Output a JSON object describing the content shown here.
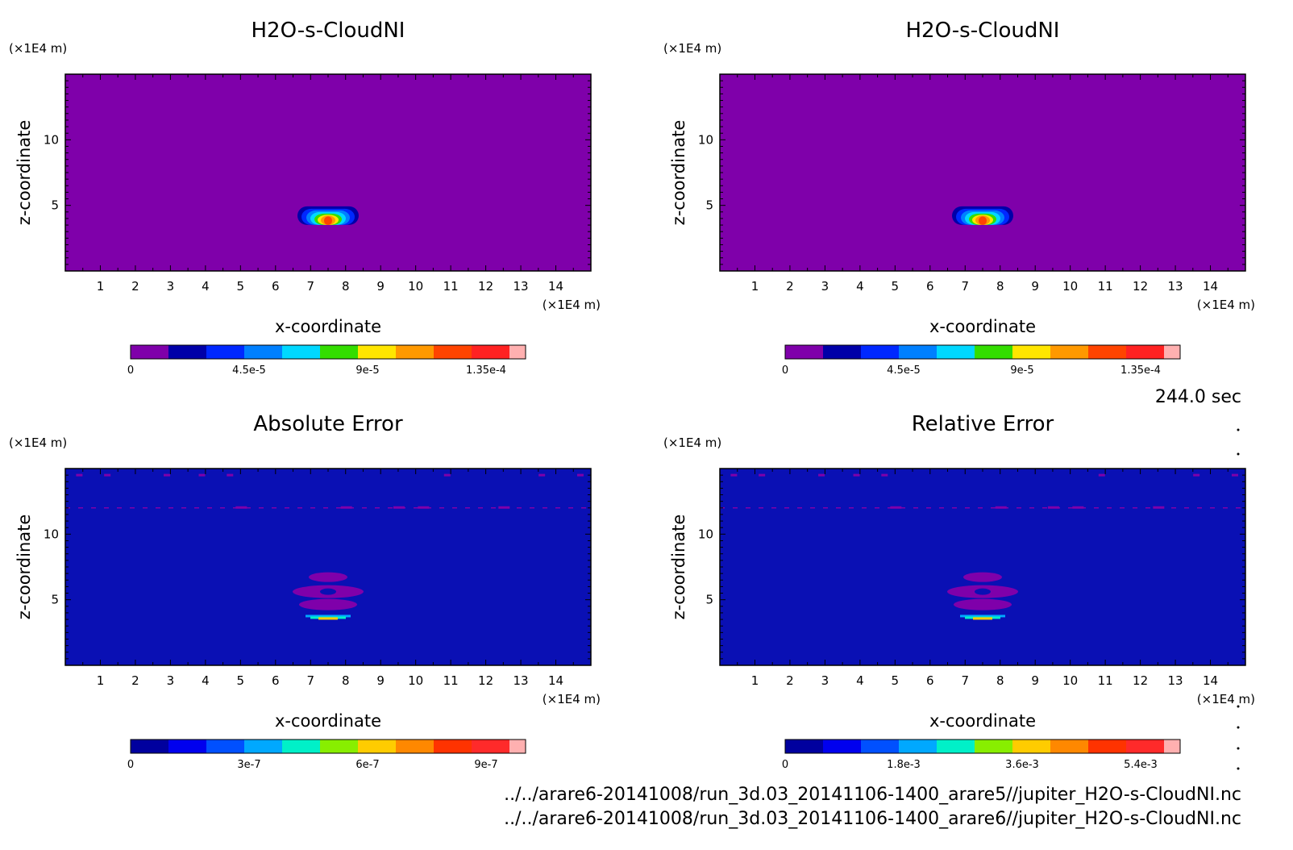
{
  "chart_data": [
    {
      "type": "heatmap",
      "title": "H2O-s-CloudNI",
      "xlabel": "x-coordinate",
      "ylabel": "z-coordinate",
      "x_unit": "(×1E4 m)",
      "y_unit": "(×1E4 m)",
      "xlim": [
        0,
        15
      ],
      "ylim": [
        0,
        15
      ],
      "xticks": [
        "1",
        "2",
        "3",
        "4",
        "5",
        "6",
        "7",
        "8",
        "9",
        "10",
        "11",
        "12",
        "13",
        "14"
      ],
      "yticks": [
        "5",
        "10"
      ],
      "colorbar": {
        "colors": [
          "#7f00aa",
          "#0000a8",
          "#0028ff",
          "#0080ff",
          "#00d8ff",
          "#33dd00",
          "#ffe600",
          "#ff9900",
          "#ff4400",
          "#ff2222",
          "#ffb0b0"
        ],
        "tick_labels": [
          "0",
          "4.5e-5",
          "9e-5",
          "1.35e-4"
        ],
        "tick_values": [
          0,
          4.5e-05,
          9e-05,
          0.000135
        ],
        "vmax": 0.00015
      },
      "background": "#7f00aa",
      "feature": {
        "kind": "cloud",
        "x_center": 7.5,
        "z_center": 4.0
      }
    },
    {
      "type": "heatmap",
      "title": "H2O-s-CloudNI",
      "xlabel": "x-coordinate",
      "ylabel": "z-coordinate",
      "x_unit": "(×1E4 m)",
      "y_unit": "(×1E4 m)",
      "xlim": [
        0,
        15
      ],
      "ylim": [
        0,
        15
      ],
      "xticks": [
        "1",
        "2",
        "3",
        "4",
        "5",
        "6",
        "7",
        "8",
        "9",
        "10",
        "11",
        "12",
        "13",
        "14"
      ],
      "yticks": [
        "5",
        "10"
      ],
      "colorbar": {
        "colors": [
          "#7f00aa",
          "#0000a8",
          "#0028ff",
          "#0080ff",
          "#00d8ff",
          "#33dd00",
          "#ffe600",
          "#ff9900",
          "#ff4400",
          "#ff2222",
          "#ffb0b0"
        ],
        "tick_labels": [
          "0",
          "4.5e-5",
          "9e-5",
          "1.35e-4"
        ],
        "tick_values": [
          0,
          4.5e-05,
          9e-05,
          0.000135
        ],
        "vmax": 0.00015
      },
      "background": "#7f00aa",
      "feature": {
        "kind": "cloud",
        "x_center": 7.5,
        "z_center": 4.0
      }
    },
    {
      "type": "heatmap",
      "title": "Absolute Error",
      "xlabel": "x-coordinate",
      "ylabel": "z-coordinate",
      "x_unit": "(×1E4 m)",
      "y_unit": "(×1E4 m)",
      "xlim": [
        0,
        15
      ],
      "ylim": [
        0,
        15
      ],
      "xticks": [
        "1",
        "2",
        "3",
        "4",
        "5",
        "6",
        "7",
        "8",
        "9",
        "10",
        "11",
        "12",
        "13",
        "14"
      ],
      "yticks": [
        "5",
        "10"
      ],
      "colorbar": {
        "colors": [
          "#00009e",
          "#0000ee",
          "#0050ff",
          "#00a8ff",
          "#00f0c8",
          "#88ee00",
          "#ffcc00",
          "#ff8800",
          "#ff3300",
          "#ff2a2a",
          "#ffb0b0"
        ],
        "tick_labels": [
          "0",
          "3e-7",
          "6e-7",
          "9e-7"
        ],
        "tick_values": [
          0,
          3e-07,
          6e-07,
          9e-07
        ],
        "vmax": 1e-06
      },
      "background": "#0a10b4",
      "feature": {
        "kind": "error",
        "x_center": 7.5,
        "z_center": 5.0
      }
    },
    {
      "type": "heatmap",
      "title": "Relative Error",
      "xlabel": "x-coordinate",
      "ylabel": "z-coordinate",
      "x_unit": "(×1E4 m)",
      "y_unit": "(×1E4 m)",
      "xlim": [
        0,
        15
      ],
      "ylim": [
        0,
        15
      ],
      "xticks": [
        "1",
        "2",
        "3",
        "4",
        "5",
        "6",
        "7",
        "8",
        "9",
        "10",
        "11",
        "12",
        "13",
        "14"
      ],
      "yticks": [
        "5",
        "10"
      ],
      "colorbar": {
        "colors": [
          "#00009e",
          "#0000ee",
          "#0050ff",
          "#00a8ff",
          "#00f0c8",
          "#88ee00",
          "#ffcc00",
          "#ff8800",
          "#ff3300",
          "#ff2a2a",
          "#ffb0b0"
        ],
        "tick_labels": [
          "0",
          "1.8e-3",
          "3.6e-3",
          "5.4e-3"
        ],
        "tick_values": [
          0,
          0.0018,
          0.0036,
          0.0054
        ],
        "vmax": 0.006
      },
      "background": "#0a10b4",
      "feature": {
        "kind": "error",
        "x_center": 7.5,
        "z_center": 5.0
      }
    }
  ],
  "time_label": "244.0 sec",
  "files": [
    "../../arare6-20141008/run_3d.03_20141106-1400_arare5//jupiter_H2O-s-CloudNI.nc",
    "../../arare6-20141008/run_3d.03_20141106-1400_arare6//jupiter_H2O-s-CloudNI.nc"
  ]
}
